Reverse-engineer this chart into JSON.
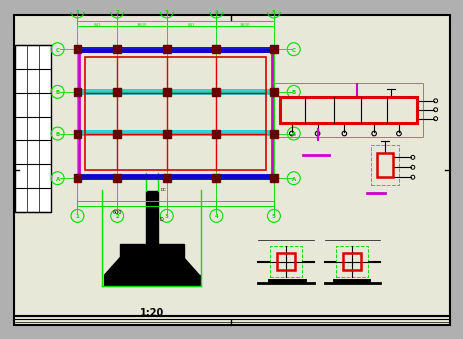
{
  "bg_color": "#b0b0b0",
  "paper_color": "#e8e8d8",
  "green": "#00dd00",
  "red": "#dd0000",
  "magenta": "#cc00cc",
  "cyan": "#00cccc",
  "blue": "#0000cc",
  "black": "#000000",
  "dark_red": "#660000",
  "title_text": "1:20",
  "fig_width": 4.47,
  "fig_height": 3.2,
  "grid_labels_top": [
    "1",
    "2",
    "3",
    "4",
    "5"
  ],
  "grid_labels_bot": [
    "1",
    "2",
    "3",
    "4",
    "5"
  ],
  "grid_labels_lr": [
    "C",
    "B",
    "A"
  ]
}
